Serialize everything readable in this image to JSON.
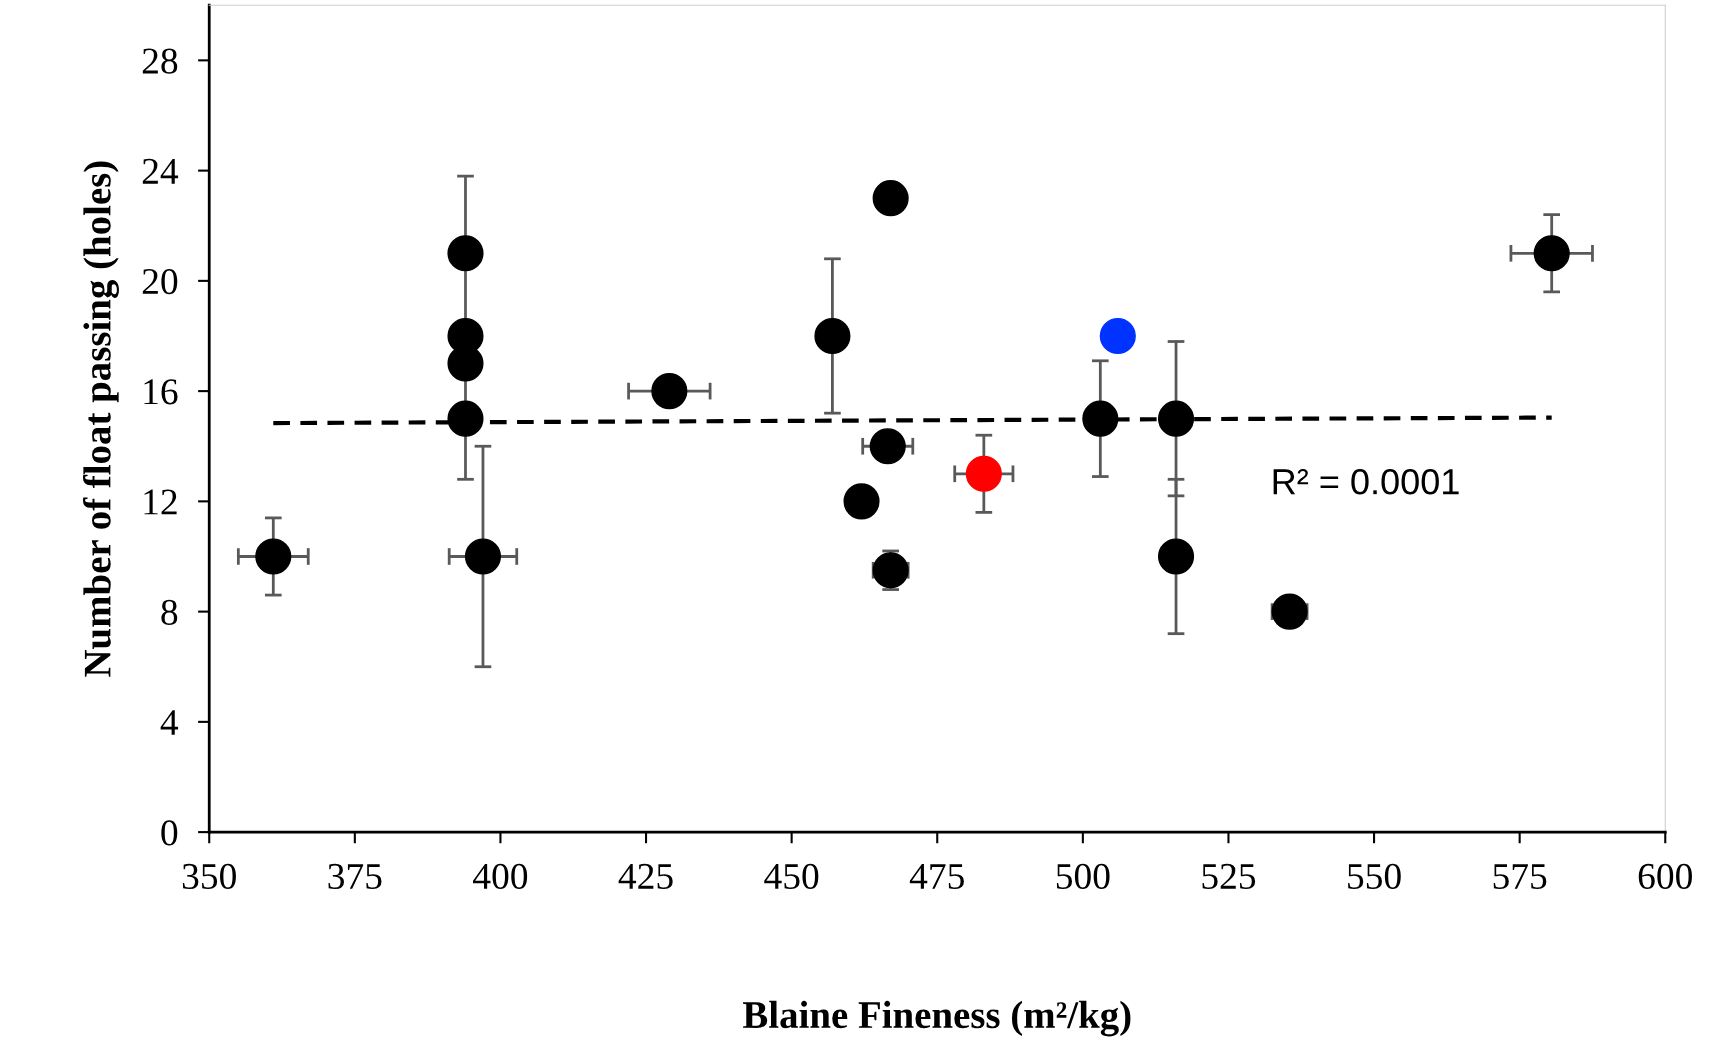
{
  "chart_data": {
    "type": "scatter",
    "xlabel": "Blaine Fineness (m²/kg)",
    "ylabel": "Number of float passing (holes)",
    "xlim": [
      350,
      600
    ],
    "xticks": [
      350,
      375,
      400,
      425,
      450,
      475,
      500,
      525,
      550,
      575,
      600
    ],
    "ylim": [
      0,
      30
    ],
    "yticks": [
      0,
      4,
      8,
      12,
      16,
      20,
      24,
      28
    ],
    "grid": false,
    "legend": false,
    "marker": "circle",
    "series": [
      {
        "color": "#000000",
        "x": [
          361,
          394,
          394,
          394,
          394,
          397,
          429,
          457,
          467,
          466.5,
          462,
          467,
          503,
          516,
          516,
          535.5,
          580.5
        ],
        "values": [
          10,
          21,
          18,
          17,
          15,
          10,
          16,
          18,
          23,
          14,
          12,
          9.5,
          15,
          15,
          10,
          8,
          21
        ],
        "errors": [
          1.4,
          2.8,
          null,
          null,
          2.2,
          4,
          null,
          2.8,
          null,
          null,
          null,
          0.7,
          2.1,
          2.8,
          2.8,
          null,
          1.4
        ],
        "xerrors": [
          6,
          null,
          null,
          null,
          null,
          5.8,
          7,
          null,
          null,
          4.3,
          null,
          3,
          null,
          null,
          null,
          3,
          7
        ]
      },
      {
        "color": "#ff0000",
        "x": [
          483
        ],
        "values": [
          13
        ],
        "errors": [
          1.4
        ],
        "xerrors": [
          5
        ]
      },
      {
        "color": "#0033ff",
        "x": [
          506
        ],
        "values": [
          18
        ]
      },
      {
        "type": "line",
        "color": "#000000",
        "line_style": "dashed",
        "marker": "none",
        "x": [
          361,
          580.5
        ],
        "values": [
          14.84,
          15.04
        ]
      }
    ],
    "annotations": [
      "R² = 0.0001"
    ]
  }
}
